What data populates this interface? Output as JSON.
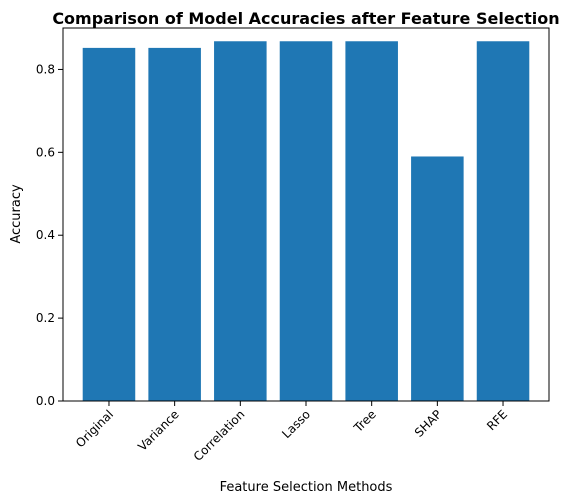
{
  "chart_data": {
    "type": "bar",
    "title": "Comparison of Model Accuracies after Feature Selection",
    "xlabel": "Feature Selection Methods",
    "ylabel": "Accuracy",
    "categories": [
      "Original",
      "Variance",
      "Correlation",
      "Lasso",
      "Tree",
      "SHAP",
      "RFE"
    ],
    "values": [
      0.852,
      0.852,
      0.868,
      0.868,
      0.868,
      0.59,
      0.868
    ],
    "ylim": [
      0,
      0.9
    ],
    "yticks": [
      0.0,
      0.2,
      0.4,
      0.6,
      0.8
    ],
    "ytick_labels": [
      "0.0",
      "0.2",
      "0.4",
      "0.6",
      "0.8"
    ],
    "bar_color": "#1f77b4",
    "grid": false,
    "legend": "none"
  }
}
